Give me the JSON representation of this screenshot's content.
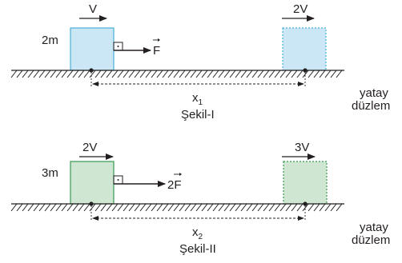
{
  "colors": {
    "fig1_block_fill": "#cbe6f5",
    "fig1_block_stroke": "#4aafd9",
    "fig2_block_fill": "#cfe6d3",
    "fig2_block_stroke": "#3a9a54",
    "ink": "#231f20"
  },
  "figure1": {
    "mass_label": "2m",
    "initial_velocity": "V",
    "final_velocity": "2V",
    "force_label": "F",
    "distance_label": "x",
    "distance_subscript": "1",
    "caption": "Şekil-I",
    "plane_label_line1": "yatay",
    "plane_label_line2": "düzlem"
  },
  "figure2": {
    "mass_label": "3m",
    "initial_velocity": "2V",
    "final_velocity": "3V",
    "force_coefficient": "2",
    "force_label": "F",
    "distance_label": "x",
    "distance_subscript": "2",
    "caption": "Şekil-II",
    "plane_label_line1": "yatay",
    "plane_label_line2": "düzlem"
  }
}
